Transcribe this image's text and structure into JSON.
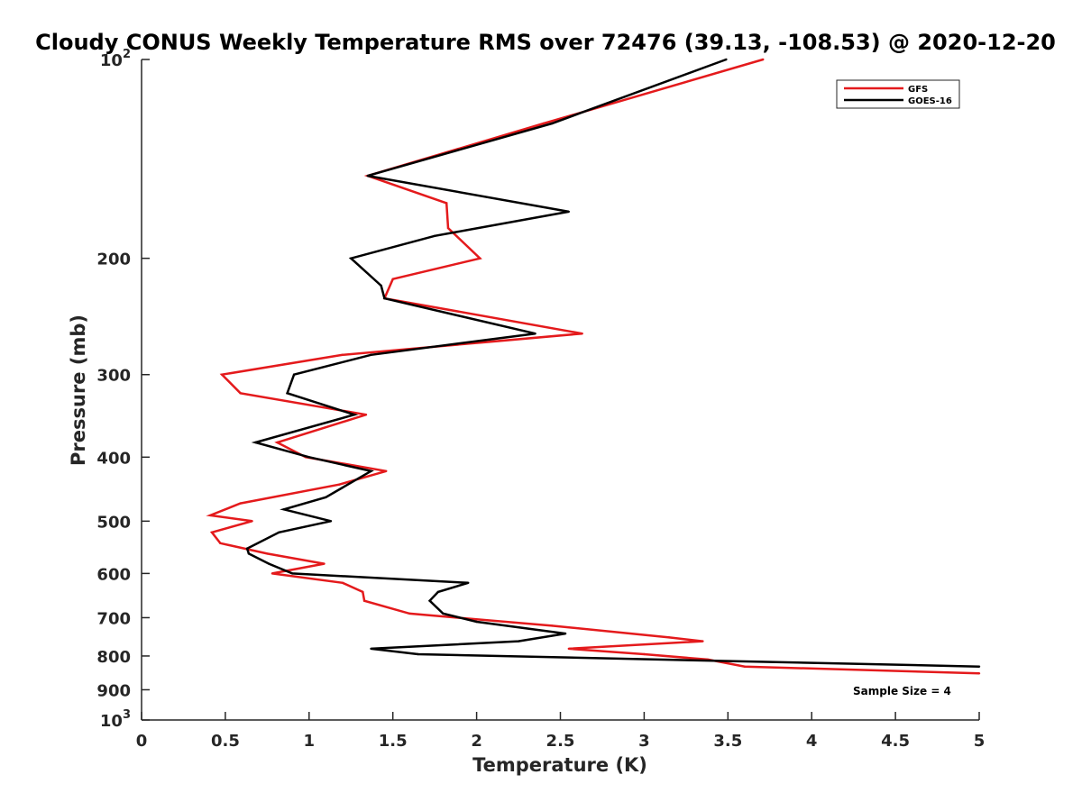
{
  "chart_data": {
    "type": "line",
    "title": "Cloudy CONUS Weekly Temperature RMS over 72476 (39.13, -108.53) @ 2020-12-20",
    "xlabel": "Temperature (K)",
    "ylabel": "Pressure (mb)",
    "xlim": [
      0,
      5
    ],
    "ylim": [
      1000,
      100
    ],
    "yscale": "log",
    "y_reversed": true,
    "grid": false,
    "legend_position": "top-right",
    "x_ticks": [
      "0",
      "0.5",
      "1",
      "1.5",
      "2",
      "2.5",
      "3",
      "3.5",
      "4",
      "4.5",
      "5"
    ],
    "y_ticks": [
      {
        "value": 100,
        "base": "10",
        "exp": "2"
      },
      {
        "value": 200,
        "base": "200",
        "exp": ""
      },
      {
        "value": 300,
        "base": "300",
        "exp": ""
      },
      {
        "value": 400,
        "base": "400",
        "exp": ""
      },
      {
        "value": 500,
        "base": "500",
        "exp": ""
      },
      {
        "value": 600,
        "base": "600",
        "exp": ""
      },
      {
        "value": 700,
        "base": "700",
        "exp": ""
      },
      {
        "value": 800,
        "base": "800",
        "exp": ""
      },
      {
        "value": 900,
        "base": "900",
        "exp": ""
      },
      {
        "value": 1000,
        "base": "10",
        "exp": "3"
      }
    ],
    "annotation": "Sample Size = 4",
    "series": [
      {
        "name": "GFS",
        "color": "#e41a1c",
        "points": [
          [
            3.71,
            100
          ],
          [
            2.4,
            125
          ],
          [
            1.35,
            150
          ],
          [
            1.82,
            165
          ],
          [
            1.83,
            180
          ],
          [
            2.02,
            200
          ],
          [
            1.5,
            215
          ],
          [
            1.45,
            230
          ],
          [
            2.63,
            260
          ],
          [
            1.2,
            280
          ],
          [
            0.48,
            300
          ],
          [
            0.59,
            320
          ],
          [
            1.34,
            345
          ],
          [
            0.81,
            380
          ],
          [
            0.98,
            400
          ],
          [
            1.46,
            420
          ],
          [
            1.18,
            440
          ],
          [
            0.59,
            470
          ],
          [
            0.41,
            490
          ],
          [
            0.66,
            500
          ],
          [
            0.42,
            520
          ],
          [
            0.47,
            540
          ],
          [
            0.75,
            560
          ],
          [
            1.09,
            580
          ],
          [
            0.78,
            600
          ],
          [
            1.2,
            620
          ],
          [
            1.32,
            640
          ],
          [
            1.33,
            660
          ],
          [
            1.6,
            690
          ],
          [
            2.45,
            720
          ],
          [
            3.15,
            750
          ],
          [
            3.35,
            760
          ],
          [
            2.55,
            780
          ],
          [
            3.0,
            795
          ],
          [
            3.38,
            810
          ],
          [
            3.6,
            830
          ],
          [
            5.0,
            850
          ]
        ]
      },
      {
        "name": "GOES-16",
        "color": "#000000",
        "points": [
          [
            3.49,
            100
          ],
          [
            2.45,
            125
          ],
          [
            1.35,
            150
          ],
          [
            2.55,
            170
          ],
          [
            1.75,
            185
          ],
          [
            1.25,
            200
          ],
          [
            1.43,
            220
          ],
          [
            1.45,
            230
          ],
          [
            2.35,
            260
          ],
          [
            1.37,
            280
          ],
          [
            0.91,
            300
          ],
          [
            0.87,
            320
          ],
          [
            1.27,
            345
          ],
          [
            0.68,
            380
          ],
          [
            1.0,
            400
          ],
          [
            1.37,
            420
          ],
          [
            1.1,
            460
          ],
          [
            0.85,
            480
          ],
          [
            1.13,
            500
          ],
          [
            0.82,
            520
          ],
          [
            0.63,
            550
          ],
          [
            0.64,
            560
          ],
          [
            0.76,
            580
          ],
          [
            0.9,
            600
          ],
          [
            1.95,
            620
          ],
          [
            1.77,
            640
          ],
          [
            1.72,
            660
          ],
          [
            1.8,
            690
          ],
          [
            2.0,
            710
          ],
          [
            2.53,
            740
          ],
          [
            2.25,
            760
          ],
          [
            1.37,
            780
          ],
          [
            1.65,
            795
          ],
          [
            5.0,
            830
          ]
        ]
      }
    ]
  }
}
